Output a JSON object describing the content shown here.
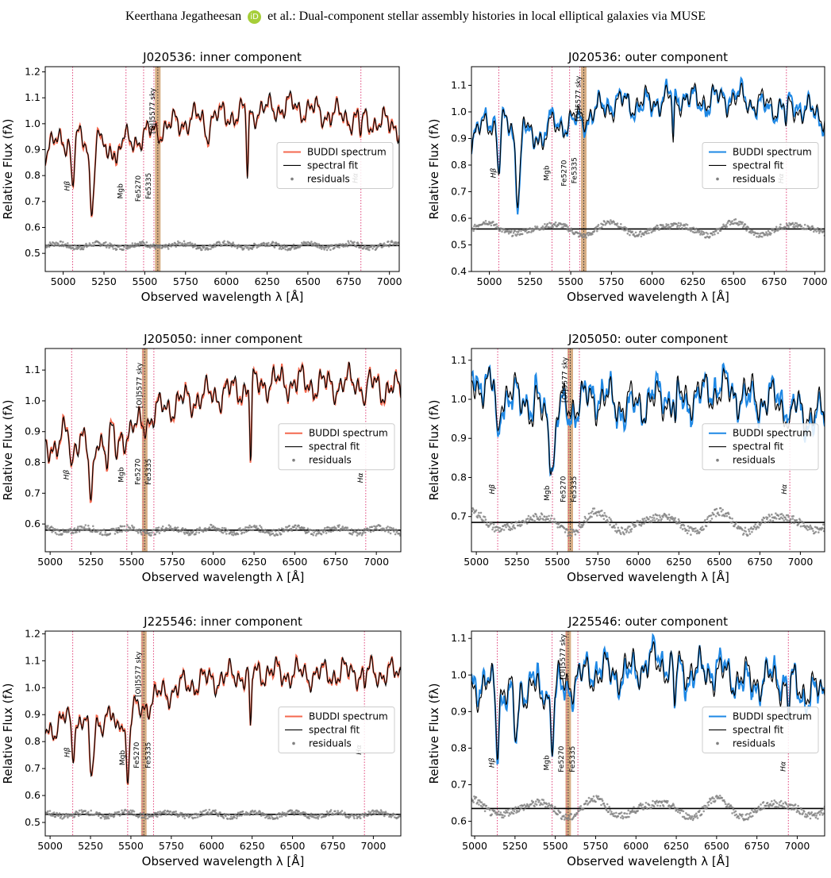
{
  "header": {
    "author": "Keerthana Jegatheesan",
    "orcid_mark": "iD",
    "rest": "et al.: Dual-component stellar assembly histories in local elliptical galaxies via MUSE"
  },
  "colors": {
    "inner_spectrum": "#f4694f",
    "outer_spectrum": "#1e88e5",
    "fit": "#000000",
    "residuals": "#808080",
    "line_markers": "#e0457b",
    "sky_band": "#c8925b"
  },
  "legend": {
    "spectrum": "BUDDI spectrum",
    "fit": "spectral fit",
    "residuals": "residuals"
  },
  "xlabel": "Observed wavelength λ [Å]",
  "ylabel": "Relative Flux (fλ)",
  "chart_data": [
    {
      "type": "line",
      "title": "J020536: inner component",
      "component": "inner",
      "xlim": [
        4890,
        7060
      ],
      "ylim": [
        0.43,
        1.22
      ],
      "xticks": [
        5000,
        5250,
        5500,
        5750,
        6000,
        6250,
        6500,
        6750,
        7000
      ],
      "yticks": [
        0.5,
        0.6,
        0.7,
        0.8,
        0.9,
        1.0,
        1.1,
        1.2
      ],
      "sky_band": [
        5563,
        5597
      ],
      "lines": [
        {
          "label": "Hβ",
          "x": 5058,
          "y": 0.76
        },
        {
          "label": "Mgb",
          "x": 5385,
          "y": 0.74
        },
        {
          "label": "Fe5270",
          "x": 5493,
          "y": 0.75
        },
        {
          "label": "Fe5335",
          "x": 5556,
          "y": 0.76
        },
        {
          "label": "[OI]5577 sky",
          "x": 5580,
          "y": 1.05
        },
        {
          "label": "Hα",
          "x": 6825,
          "y": 0.79
        }
      ],
      "residual_level": 0.53,
      "continuum": [
        [
          4890,
          0.9
        ],
        [
          5000,
          0.94
        ],
        [
          5200,
          0.93
        ],
        [
          5400,
          0.93
        ],
        [
          5600,
          0.98
        ],
        [
          5800,
          1.02
        ],
        [
          6000,
          1.03
        ],
        [
          6200,
          1.05
        ],
        [
          6400,
          1.07
        ],
        [
          6600,
          1.04
        ],
        [
          6800,
          1.02
        ],
        [
          7060,
          0.99
        ]
      ],
      "absorption": [
        [
          5058,
          0.18,
          12
        ],
        [
          5175,
          0.24,
          18
        ],
        [
          5270,
          0.08,
          14
        ],
        [
          5330,
          0.07,
          14
        ],
        [
          6130,
          0.25,
          8
        ],
        [
          6825,
          0.06,
          10
        ],
        [
          5880,
          0.05,
          20
        ]
      ],
      "legend_position": "center-right"
    },
    {
      "type": "line",
      "title": "J020536: outer component",
      "component": "outer",
      "xlim": [
        4890,
        7060
      ],
      "ylim": [
        0.4,
        1.17
      ],
      "xticks": [
        5000,
        5250,
        5500,
        5750,
        6000,
        6250,
        6500,
        6750,
        7000
      ],
      "yticks": [
        0.4,
        0.5,
        0.6,
        0.7,
        0.8,
        0.9,
        1.0,
        1.1
      ],
      "sky_band": [
        5563,
        5597
      ],
      "lines": [
        {
          "label": "Hβ",
          "x": 5058,
          "y": 0.77
        },
        {
          "label": "Mgb",
          "x": 5385,
          "y": 0.77
        },
        {
          "label": "Fe5270",
          "x": 5493,
          "y": 0.77
        },
        {
          "label": "Fe5335",
          "x": 5556,
          "y": 0.78
        },
        {
          "label": "[OI]5577 sky",
          "x": 5580,
          "y": 1.05
        },
        {
          "label": "Hα",
          "x": 6825,
          "y": 0.75
        }
      ],
      "residual_level": 0.56,
      "continuum": [
        [
          4890,
          0.9
        ],
        [
          5000,
          0.96
        ],
        [
          5200,
          0.94
        ],
        [
          5400,
          0.94
        ],
        [
          5600,
          0.99
        ],
        [
          5800,
          1.03
        ],
        [
          6000,
          1.04
        ],
        [
          6200,
          1.05
        ],
        [
          6400,
          1.05
        ],
        [
          6600,
          1.04
        ],
        [
          6800,
          1.02
        ],
        [
          7060,
          0.99
        ]
      ],
      "absorption": [
        [
          5058,
          0.18,
          12
        ],
        [
          5175,
          0.24,
          18
        ],
        [
          5270,
          0.08,
          14
        ],
        [
          5330,
          0.07,
          14
        ],
        [
          6130,
          0.18,
          8
        ],
        [
          6825,
          0.08,
          10
        ]
      ],
      "legend_position": "center-right"
    },
    {
      "type": "line",
      "title": "J205050: inner component",
      "component": "inner",
      "xlim": [
        4970,
        7150
      ],
      "ylim": [
        0.51,
        1.17
      ],
      "xticks": [
        5000,
        5250,
        5500,
        5750,
        6000,
        6250,
        6500,
        6750,
        7000
      ],
      "yticks": [
        0.6,
        0.7,
        0.8,
        0.9,
        1.0,
        1.1
      ],
      "sky_band": [
        5563,
        5597
      ],
      "lines": [
        {
          "label": "Hβ",
          "x": 5132,
          "y": 0.76
        },
        {
          "label": "Mgb",
          "x": 5470,
          "y": 0.76
        },
        {
          "label": "Fe5270",
          "x": 5570,
          "y": 0.77
        },
        {
          "label": "Fe5335",
          "x": 5636,
          "y": 0.77
        },
        {
          "label": "[OI]5577 sky",
          "x": 5580,
          "y": 1.05
        },
        {
          "label": "Hα",
          "x": 6935,
          "y": 0.75
        }
      ],
      "residual_level": 0.58,
      "continuum": [
        [
          4970,
          0.84
        ],
        [
          5100,
          0.89
        ],
        [
          5300,
          0.88
        ],
        [
          5500,
          0.9
        ],
        [
          5700,
          0.98
        ],
        [
          5900,
          1.01
        ],
        [
          6100,
          1.03
        ],
        [
          6300,
          1.06
        ],
        [
          6500,
          1.06
        ],
        [
          6700,
          1.05
        ],
        [
          6900,
          1.06
        ],
        [
          7150,
          1.03
        ]
      ],
      "absorption": [
        [
          5132,
          0.13,
          12
        ],
        [
          5250,
          0.24,
          18
        ],
        [
          5350,
          0.08,
          14
        ],
        [
          5410,
          0.07,
          14
        ],
        [
          6230,
          0.25,
          8
        ],
        [
          6935,
          0.06,
          10
        ]
      ],
      "legend_position": "center-right"
    },
    {
      "type": "line",
      "title": "J205050: outer component",
      "component": "outer",
      "xlim": [
        4970,
        7150
      ],
      "ylim": [
        0.61,
        1.13
      ],
      "xticks": [
        5000,
        5250,
        5500,
        5750,
        6000,
        6250,
        6500,
        6750,
        7000
      ],
      "yticks": [
        0.7,
        0.8,
        0.9,
        1.0,
        1.1
      ],
      "sky_band": [
        5563,
        5597
      ],
      "lines": [
        {
          "label": "Hβ",
          "x": 5132,
          "y": 0.77
        },
        {
          "label": "Mgb",
          "x": 5470,
          "y": 0.76
        },
        {
          "label": "Fe5270",
          "x": 5570,
          "y": 0.77
        },
        {
          "label": "Fe5335",
          "x": 5636,
          "y": 0.77
        },
        {
          "label": "[OI]5577 sky",
          "x": 5580,
          "y": 1.05
        },
        {
          "label": "Hα",
          "x": 6935,
          "y": 0.77
        }
      ],
      "residual_level": 0.685,
      "continuum": [
        [
          4970,
          1.04
        ],
        [
          5100,
          1.03
        ],
        [
          5300,
          1.0
        ],
        [
          5500,
          0.98
        ],
        [
          5700,
          1.0
        ],
        [
          5900,
          0.99
        ],
        [
          6100,
          0.99
        ],
        [
          6300,
          1.01
        ],
        [
          6500,
          1.02
        ],
        [
          6700,
          1.01
        ],
        [
          6900,
          0.98
        ],
        [
          7150,
          0.96
        ]
      ],
      "absorption": [
        [
          5132,
          0.14,
          12
        ],
        [
          5470,
          0.16,
          22
        ],
        [
          5350,
          0.06,
          14
        ],
        [
          5410,
          0.05,
          14
        ],
        [
          6230,
          0.08,
          8
        ],
        [
          6935,
          0.06,
          10
        ]
      ],
      "legend_position": "center-right"
    },
    {
      "type": "line",
      "title": "J225546: inner component",
      "component": "inner",
      "xlim": [
        4970,
        7170
      ],
      "ylim": [
        0.45,
        1.21
      ],
      "xticks": [
        5000,
        5250,
        5500,
        5750,
        6000,
        6250,
        6500,
        6750,
        7000
      ],
      "yticks": [
        0.5,
        0.6,
        0.7,
        0.8,
        0.9,
        1.0,
        1.1,
        1.2
      ],
      "sky_band": [
        5563,
        5597
      ],
      "lines": [
        {
          "label": "Hβ",
          "x": 5140,
          "y": 0.76
        },
        {
          "label": "Mgb",
          "x": 5480,
          "y": 0.74
        },
        {
          "label": "Fe5270",
          "x": 5570,
          "y": 0.75
        },
        {
          "label": "Fe5335",
          "x": 5640,
          "y": 0.75
        },
        {
          "label": "[OI]5577 sky",
          "x": 5580,
          "y": 1.05
        },
        {
          "label": "Hα",
          "x": 6945,
          "y": 0.77
        }
      ],
      "residual_level": 0.53,
      "continuum": [
        [
          4970,
          0.84
        ],
        [
          5100,
          0.88
        ],
        [
          5300,
          0.88
        ],
        [
          5500,
          0.9
        ],
        [
          5700,
          0.98
        ],
        [
          5900,
          1.02
        ],
        [
          6100,
          1.04
        ],
        [
          6300,
          1.06
        ],
        [
          6500,
          1.05
        ],
        [
          6700,
          1.05
        ],
        [
          6900,
          1.06
        ],
        [
          7170,
          1.05
        ]
      ],
      "absorption": [
        [
          5140,
          0.12,
          12
        ],
        [
          5255,
          0.22,
          18
        ],
        [
          5480,
          0.24,
          14
        ],
        [
          5410,
          0.07,
          14
        ],
        [
          6240,
          0.25,
          8
        ],
        [
          6945,
          0.06,
          10
        ]
      ],
      "legend_position": "center-right"
    },
    {
      "type": "line",
      "title": "J225546: outer component",
      "component": "outer",
      "xlim": [
        4980,
        7170
      ],
      "ylim": [
        0.56,
        1.12
      ],
      "xticks": [
        5000,
        5250,
        5500,
        5750,
        6000,
        6250,
        6500,
        6750,
        7000
      ],
      "yticks": [
        0.6,
        0.7,
        0.8,
        0.9,
        1.0,
        1.1
      ],
      "sky_band": [
        5563,
        5597
      ],
      "lines": [
        {
          "label": "Hβ",
          "x": 5140,
          "y": 0.76
        },
        {
          "label": "Mgb",
          "x": 5480,
          "y": 0.76
        },
        {
          "label": "Fe5270",
          "x": 5570,
          "y": 0.77
        },
        {
          "label": "Fe5335",
          "x": 5640,
          "y": 0.77
        },
        {
          "label": "[OI]5577 sky",
          "x": 5580,
          "y": 1.05
        },
        {
          "label": "Hα",
          "x": 6945,
          "y": 0.75
        }
      ],
      "residual_level": 0.635,
      "continuum": [
        [
          4980,
          0.96
        ],
        [
          5100,
          0.97
        ],
        [
          5300,
          0.96
        ],
        [
          5500,
          0.97
        ],
        [
          5700,
          1.0
        ],
        [
          5900,
          1.01
        ],
        [
          6100,
          1.03
        ],
        [
          6300,
          1.02
        ],
        [
          6500,
          1.0
        ],
        [
          6700,
          0.99
        ],
        [
          6900,
          0.98
        ],
        [
          7170,
          0.95
        ]
      ],
      "absorption": [
        [
          5140,
          0.16,
          12
        ],
        [
          5255,
          0.14,
          18
        ],
        [
          5480,
          0.15,
          14
        ],
        [
          5410,
          0.06,
          14
        ],
        [
          6240,
          0.14,
          8
        ],
        [
          6945,
          0.08,
          10
        ]
      ],
      "legend_position": "center-right"
    }
  ]
}
